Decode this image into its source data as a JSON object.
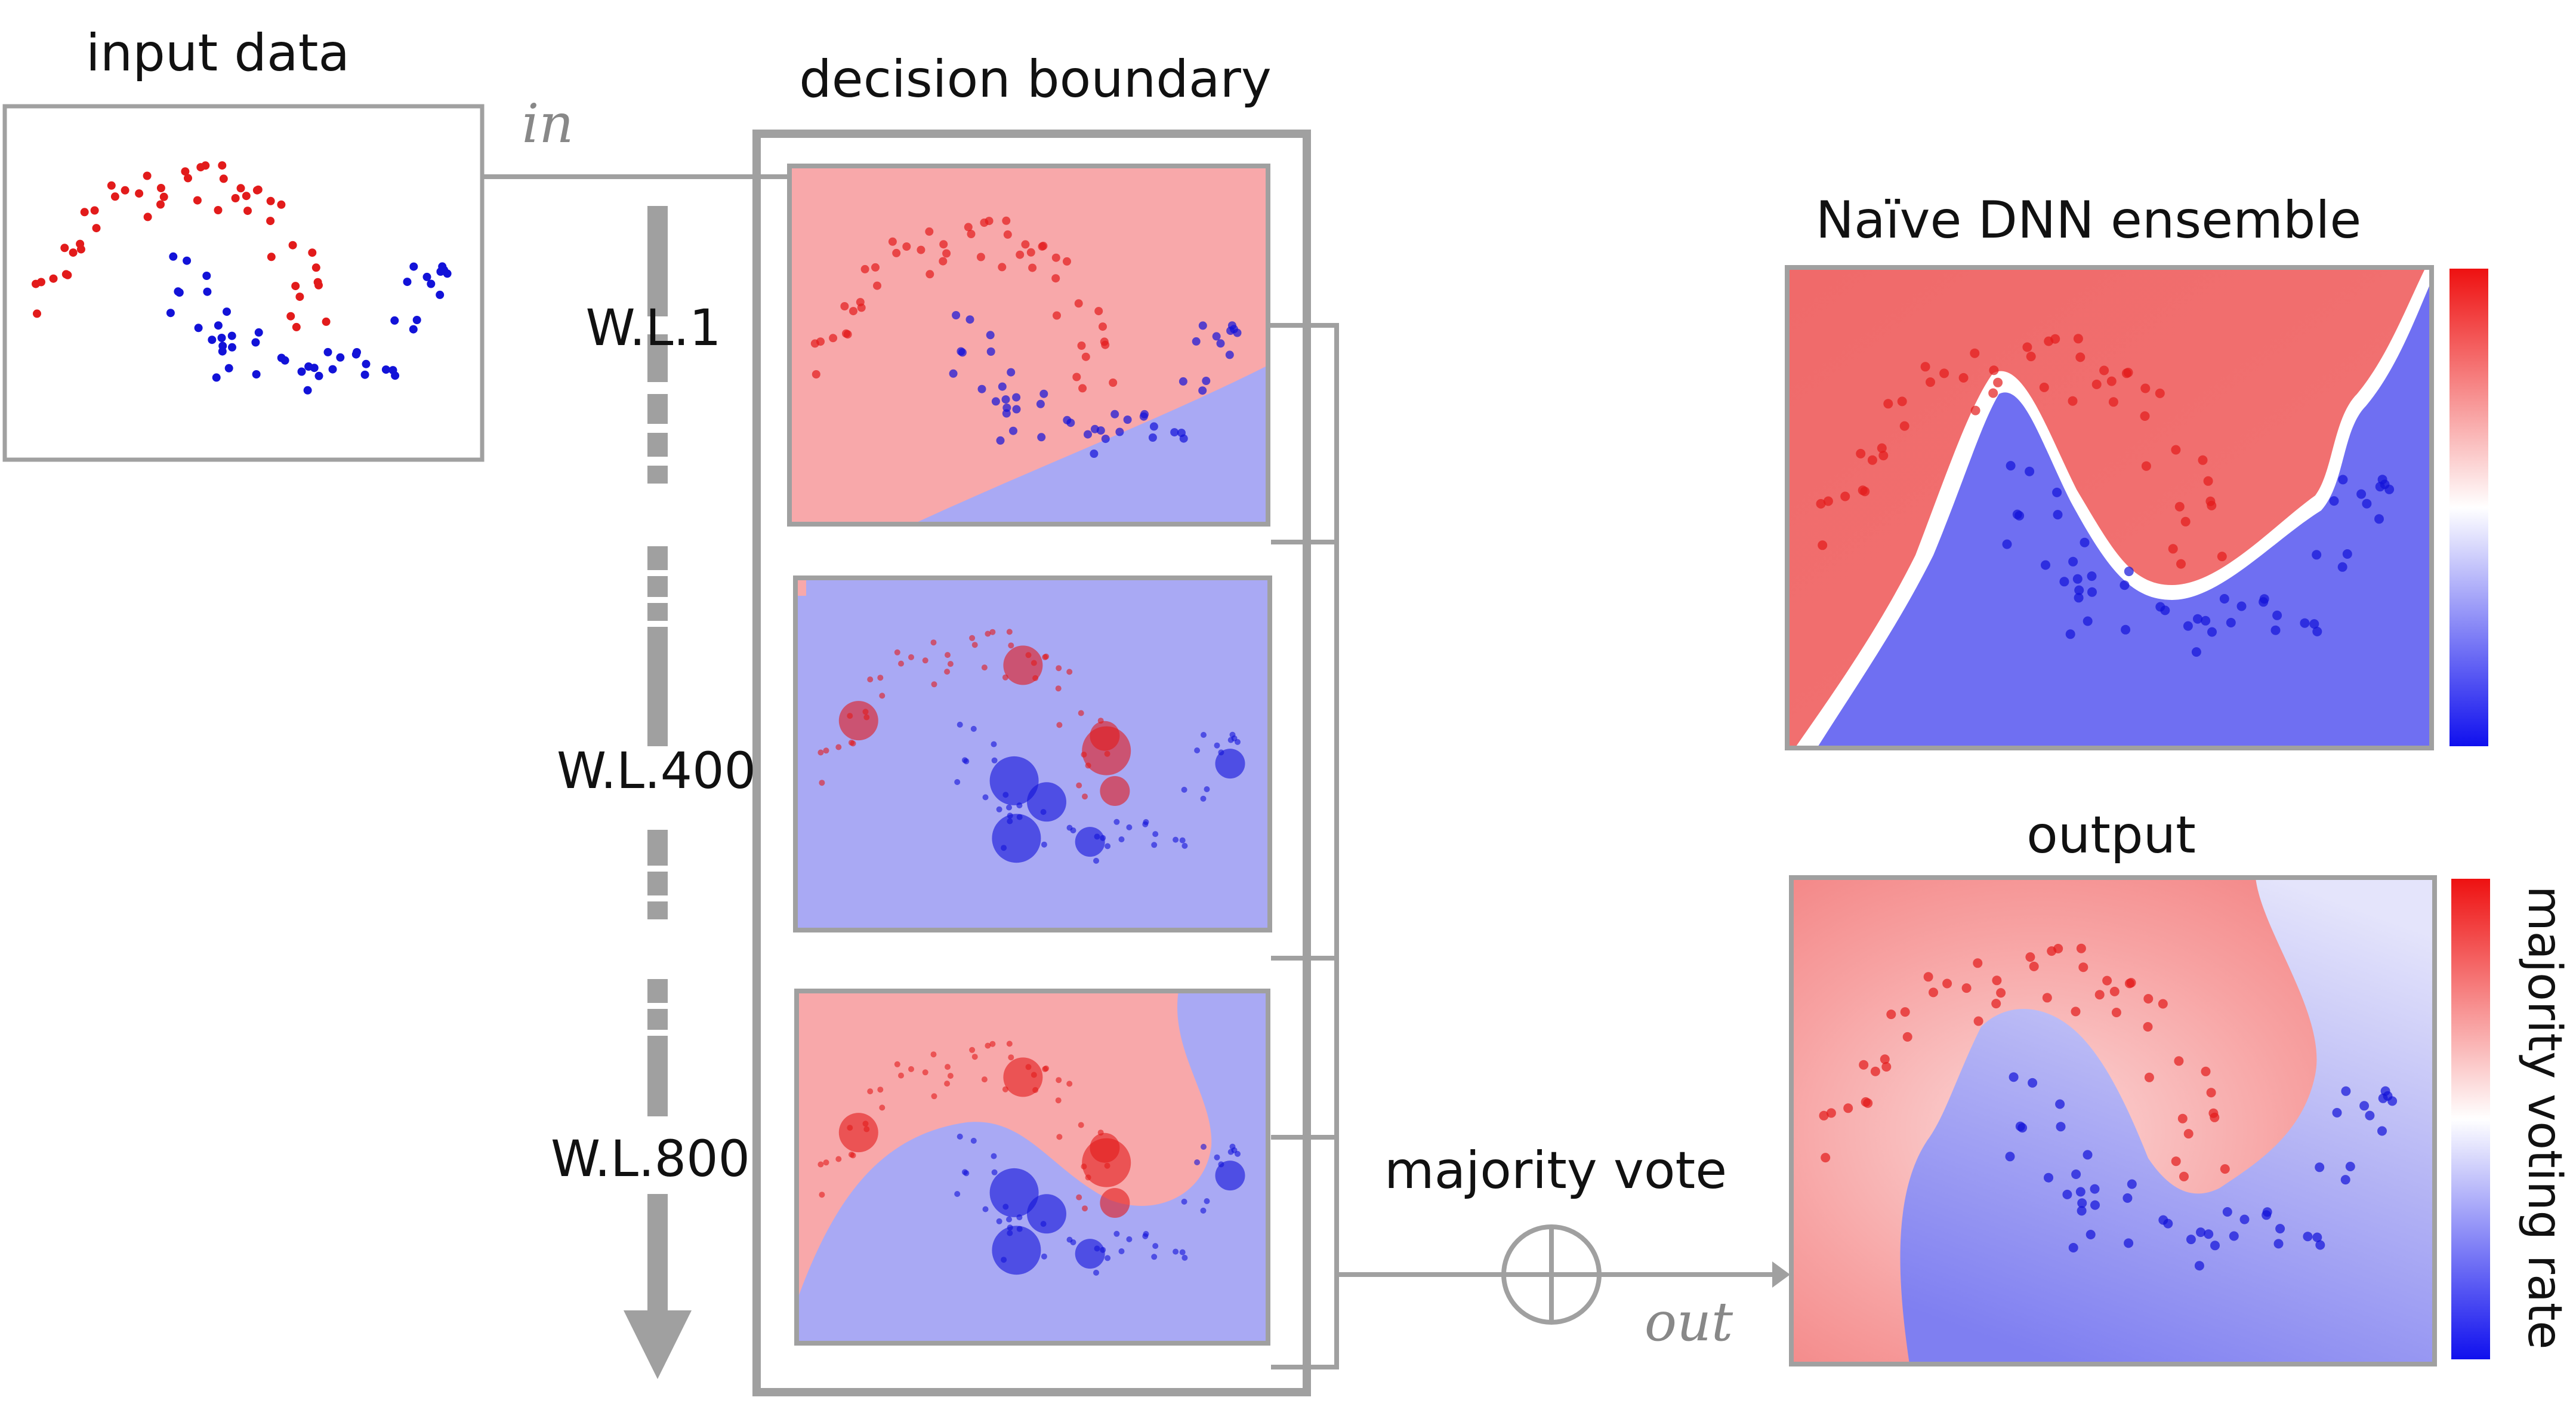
{
  "titles": {
    "input": "input data",
    "decision": "decision boundary",
    "naive": "Naïve DNN ensemble",
    "output": "output"
  },
  "layers": [
    "W.L.1",
    "W.L.400",
    "W.L.800"
  ],
  "labels": {
    "in": "in",
    "out": "out",
    "majority": "majority vote",
    "colorbar": "majority voting rate"
  },
  "colors": {
    "red": "#e21b1b",
    "blue": "#1212d8",
    "panel_red": "#f8a8aa",
    "panel_blue": "#a9a9f4",
    "grey": "#a0a0a0"
  }
}
